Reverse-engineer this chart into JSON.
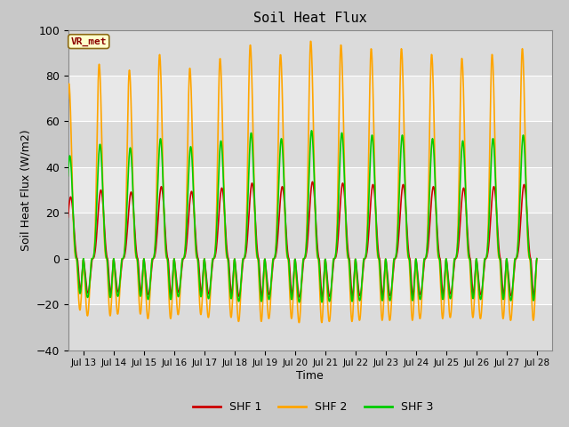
{
  "title": "Soil Heat Flux",
  "xlabel": "Time",
  "ylabel": "Soil Heat Flux (W/m2)",
  "ylim": [
    -40,
    100
  ],
  "background_color": "#c8c8c8",
  "plot_bg_color": "#e8e8e8",
  "series": {
    "SHF 1": {
      "color": "#cc0000",
      "lw": 1.2
    },
    "SHF 2": {
      "color": "#ffa500",
      "lw": 1.2
    },
    "SHF 3": {
      "color": "#00cc00",
      "lw": 1.2
    }
  },
  "shf1_amp_day": 30,
  "shf1_amp_night": 15,
  "shf2_amp_day": 85,
  "shf2_amp_night": 25,
  "shf3_amp_day": 50,
  "shf3_amp_night": 17,
  "vr_met_label": "VR_met",
  "vr_met_color": "#8b0000",
  "vr_met_bg": "#ffffcc",
  "vr_met_border": "#8b6914",
  "yticks": [
    -40,
    -20,
    0,
    20,
    40,
    60,
    80,
    100
  ],
  "grid_color": "#ffffff",
  "xtick_labels": [
    "Jul 13",
    "Jul 14",
    "Jul 15",
    "Jul 16",
    "Jul 17",
    "Jul 18",
    "Jul 19",
    "Jul 20",
    "Jul 21",
    "Jul 22",
    "Jul 23",
    "Jul 24",
    "Jul 25",
    "Jul 26",
    "Jul 27",
    "Jul 28"
  ]
}
